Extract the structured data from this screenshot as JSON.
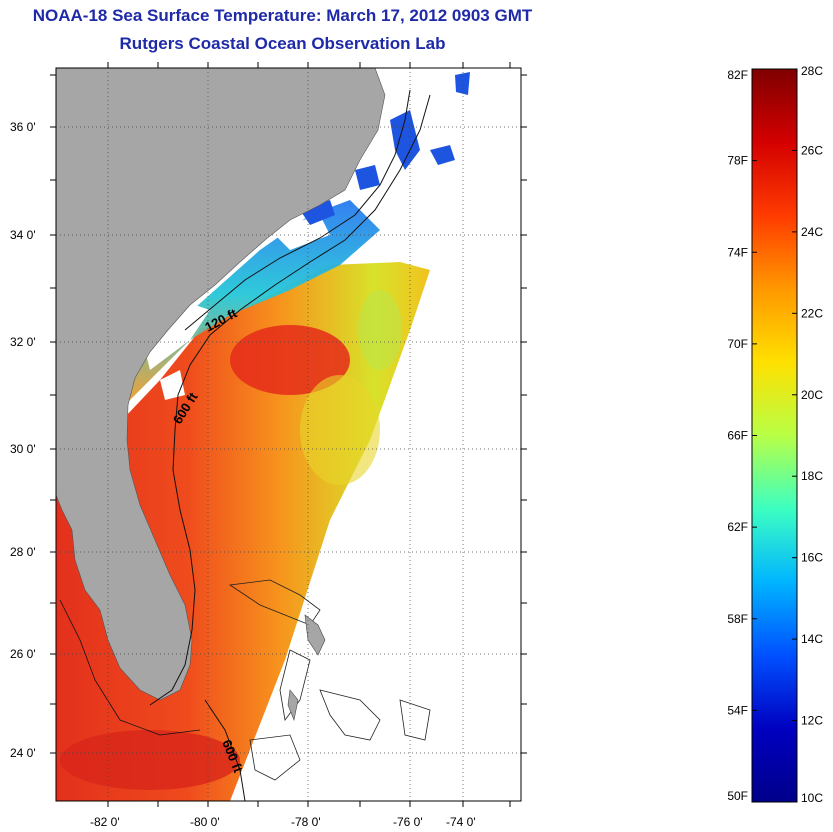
{
  "header": {
    "title": "NOAA-18 Sea Surface Temperature:  March 17, 2012 0903 GMT",
    "subtitle": "Rutgers Coastal Ocean Observation Lab"
  },
  "map": {
    "lon_labels": [
      "-82 0'",
      "-80 0'",
      "-78 0'",
      "-76 0'",
      "-74 0'"
    ],
    "lat_labels": [
      "36 0'",
      "34 0'",
      "32 0'",
      "30 0'",
      "28 0'",
      "26 0'",
      "24 0'"
    ],
    "contour_labels": [
      "120 ft",
      "600 ft",
      "600 ft"
    ],
    "colors": {
      "land": "#a6a6a6",
      "cloud": "#ffffff",
      "warm": "#e8361c",
      "mid": "#f7a81d",
      "cool": "#1e7cf0"
    }
  },
  "colorbar": {
    "fahrenheit_labels": [
      "82F",
      "78F",
      "74F",
      "70F",
      "66F",
      "62F",
      "58F",
      "54F",
      "50F"
    ],
    "celsius_labels": [
      "28C",
      "26C",
      "24C",
      "22C",
      "20C",
      "18C",
      "16C",
      "14C",
      "12C",
      "10C"
    ],
    "stops": [
      "#7f0000",
      "#d40000",
      "#ff3b00",
      "#ff9800",
      "#ffe000",
      "#b8ff46",
      "#3cffc2",
      "#00b4ff",
      "#0050ff",
      "#0000c0",
      "#00008a"
    ]
  }
}
